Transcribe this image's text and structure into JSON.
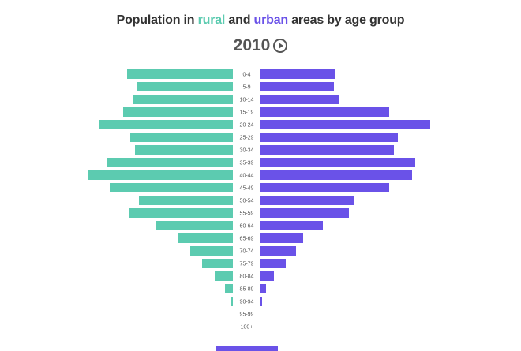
{
  "chart_data": {
    "type": "bar",
    "orientation": "horizontal-pyramid",
    "title_parts": [
      "Population in ",
      "rural",
      " and ",
      "urban",
      " areas by age group"
    ],
    "year": "2010",
    "categories": [
      "0-4",
      "5-9",
      "10-14",
      "15-19",
      "20-24",
      "25-29",
      "30-34",
      "35-39",
      "40-44",
      "45-49",
      "50-54",
      "55-59",
      "60-64",
      "65-69",
      "70-74",
      "75-79",
      "80-84",
      "85-89",
      "90-94",
      "95-99",
      "100+"
    ],
    "series": [
      {
        "name": "rural",
        "side": "left",
        "color": "#5ccbb0",
        "values": [
          134,
          121,
          127,
          139,
          169,
          130,
          124,
          160,
          183,
          156,
          119,
          132,
          98,
          69,
          54,
          39,
          23,
          10,
          2,
          0,
          0
        ]
      },
      {
        "name": "urban",
        "side": "right",
        "color": "#6a52e8",
        "values": [
          94,
          93,
          99,
          163,
          215,
          174,
          169,
          196,
          192,
          163,
          118,
          112,
          79,
          54,
          45,
          32,
          17,
          7,
          2,
          0,
          0
        ]
      }
    ],
    "grid": false,
    "axes_shown": false
  },
  "controls": {
    "play_icon": "play-circle-icon"
  }
}
